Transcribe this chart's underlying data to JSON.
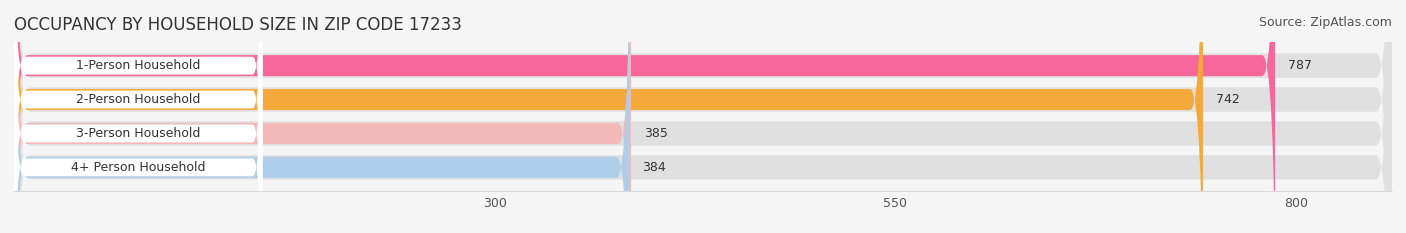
{
  "title": "OCCUPANCY BY HOUSEHOLD SIZE IN ZIP CODE 17233",
  "source": "Source: ZipAtlas.com",
  "categories": [
    "1-Person Household",
    "2-Person Household",
    "3-Person Household",
    "4+ Person Household"
  ],
  "values": [
    787,
    742,
    385,
    384
  ],
  "bar_colors": [
    "#F8679A",
    "#F5A93B",
    "#F5B8B8",
    "#AECDE8"
  ],
  "bar_bg_color": "#E8E8E8",
  "background_color": "#F5F5F5",
  "label_bg_color": "#FFFFFF",
  "xticks": [
    300,
    550,
    800
  ],
  "xmin": 0,
  "xmax": 860,
  "title_fontsize": 12,
  "source_fontsize": 9,
  "bar_label_fontsize": 9,
  "tick_fontsize": 9
}
